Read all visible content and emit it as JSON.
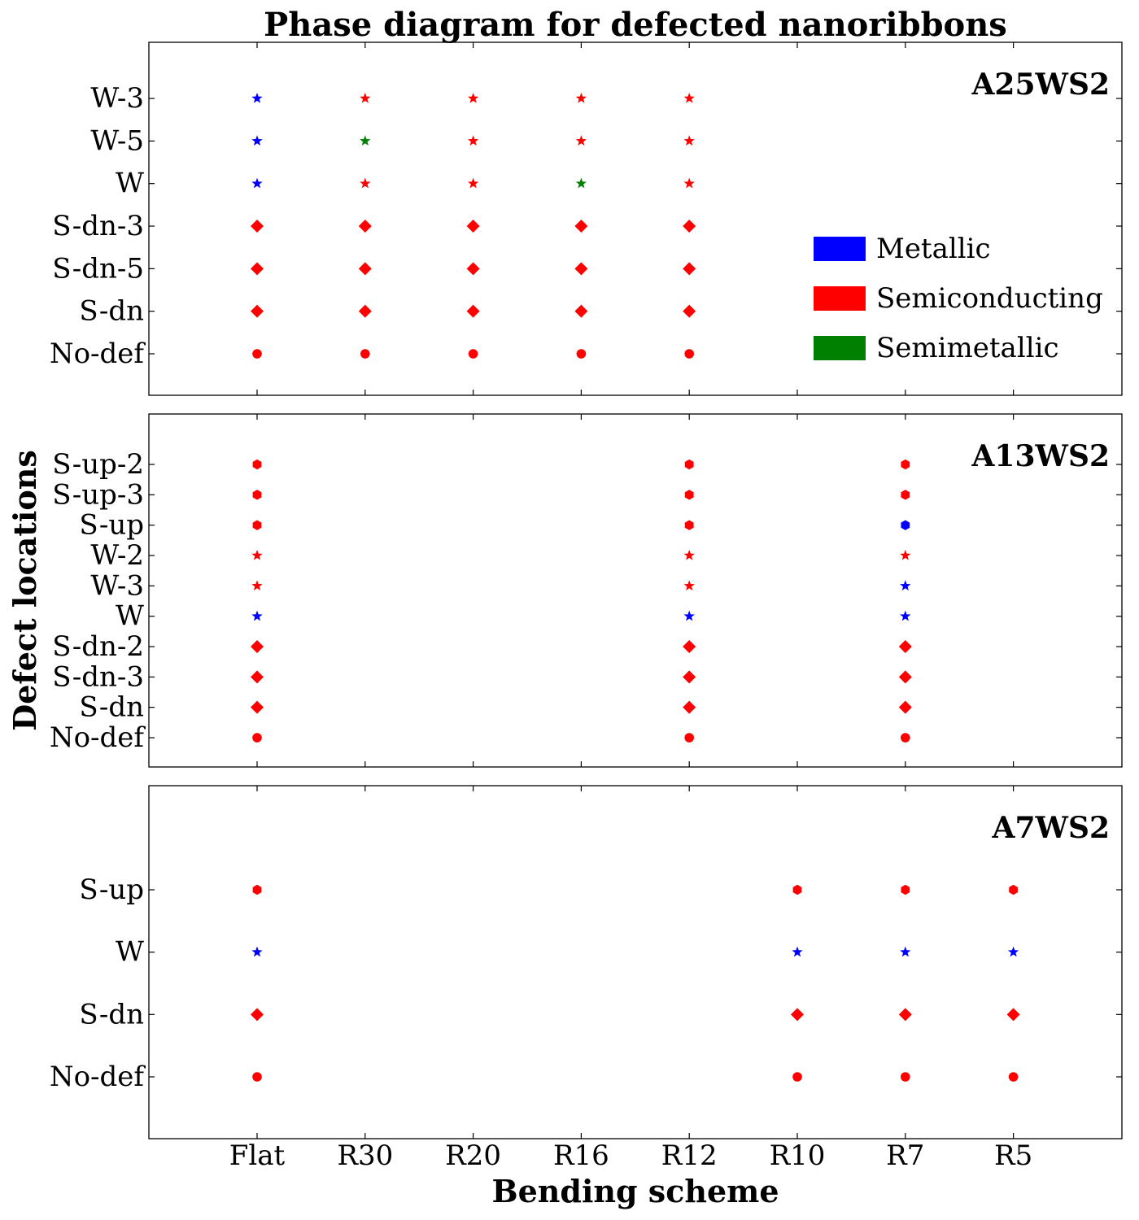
{
  "chart_data": {
    "type": "scatter",
    "title": "Phase diagram for defected nanoribbons",
    "xlabel": "Bending scheme",
    "ylabel": "Defect locations",
    "x_categories": [
      "Flat",
      "R30",
      "R20",
      "R16",
      "R12",
      "R10",
      "R7",
      "R5"
    ],
    "legend": {
      "position": "right of top panel",
      "entries": [
        {
          "label": "Metallic",
          "color": "#0000ff"
        },
        {
          "label": "Semiconducting",
          "color": "#ff0000"
        },
        {
          "label": "Semimetallic",
          "color": "#008000"
        }
      ]
    },
    "marker_key": {
      "No-def": "circle",
      "S-dn": "diamond",
      "S-dn-2": "diamond",
      "S-dn-3": "diamond",
      "S-dn-5": "diamond",
      "W": "star",
      "W-2": "star",
      "W-3": "star",
      "W-5": "star",
      "S-up": "hexagon",
      "S-up-2": "hexagon",
      "S-up-3": "hexagon"
    },
    "panels": [
      {
        "label": "A25WS2",
        "y_categories": [
          "No-def",
          "S-dn",
          "S-dn-5",
          "S-dn-3",
          "W",
          "W-5",
          "W-3"
        ],
        "points": [
          {
            "x": "Flat",
            "y": "No-def",
            "phase": "Semiconducting"
          },
          {
            "x": "R30",
            "y": "No-def",
            "phase": "Semiconducting"
          },
          {
            "x": "R20",
            "y": "No-def",
            "phase": "Semiconducting"
          },
          {
            "x": "R16",
            "y": "No-def",
            "phase": "Semiconducting"
          },
          {
            "x": "R12",
            "y": "No-def",
            "phase": "Semiconducting"
          },
          {
            "x": "Flat",
            "y": "S-dn",
            "phase": "Semiconducting"
          },
          {
            "x": "R30",
            "y": "S-dn",
            "phase": "Semiconducting"
          },
          {
            "x": "R20",
            "y": "S-dn",
            "phase": "Semiconducting"
          },
          {
            "x": "R16",
            "y": "S-dn",
            "phase": "Semiconducting"
          },
          {
            "x": "R12",
            "y": "S-dn",
            "phase": "Semiconducting"
          },
          {
            "x": "Flat",
            "y": "S-dn-5",
            "phase": "Semiconducting"
          },
          {
            "x": "R30",
            "y": "S-dn-5",
            "phase": "Semiconducting"
          },
          {
            "x": "R20",
            "y": "S-dn-5",
            "phase": "Semiconducting"
          },
          {
            "x": "R16",
            "y": "S-dn-5",
            "phase": "Semiconducting"
          },
          {
            "x": "R12",
            "y": "S-dn-5",
            "phase": "Semiconducting"
          },
          {
            "x": "Flat",
            "y": "S-dn-3",
            "phase": "Semiconducting"
          },
          {
            "x": "R30",
            "y": "S-dn-3",
            "phase": "Semiconducting"
          },
          {
            "x": "R20",
            "y": "S-dn-3",
            "phase": "Semiconducting"
          },
          {
            "x": "R16",
            "y": "S-dn-3",
            "phase": "Semiconducting"
          },
          {
            "x": "R12",
            "y": "S-dn-3",
            "phase": "Semiconducting"
          },
          {
            "x": "Flat",
            "y": "W",
            "phase": "Metallic"
          },
          {
            "x": "R30",
            "y": "W",
            "phase": "Semiconducting"
          },
          {
            "x": "R20",
            "y": "W",
            "phase": "Semiconducting"
          },
          {
            "x": "R16",
            "y": "W",
            "phase": "Semimetallic"
          },
          {
            "x": "R12",
            "y": "W",
            "phase": "Semiconducting"
          },
          {
            "x": "Flat",
            "y": "W-5",
            "phase": "Metallic"
          },
          {
            "x": "R30",
            "y": "W-5",
            "phase": "Semimetallic"
          },
          {
            "x": "R20",
            "y": "W-5",
            "phase": "Semiconducting"
          },
          {
            "x": "R16",
            "y": "W-5",
            "phase": "Semiconducting"
          },
          {
            "x": "R12",
            "y": "W-5",
            "phase": "Semiconducting"
          },
          {
            "x": "Flat",
            "y": "W-3",
            "phase": "Metallic"
          },
          {
            "x": "R30",
            "y": "W-3",
            "phase": "Semiconducting"
          },
          {
            "x": "R20",
            "y": "W-3",
            "phase": "Semiconducting"
          },
          {
            "x": "R16",
            "y": "W-3",
            "phase": "Semiconducting"
          },
          {
            "x": "R12",
            "y": "W-3",
            "phase": "Semiconducting"
          }
        ]
      },
      {
        "label": "A13WS2",
        "y_categories": [
          "No-def",
          "S-dn",
          "S-dn-3",
          "S-dn-2",
          "W",
          "W-3",
          "W-2",
          "S-up",
          "S-up-3",
          "S-up-2"
        ],
        "points": [
          {
            "x": "Flat",
            "y": "No-def",
            "phase": "Semiconducting"
          },
          {
            "x": "R12",
            "y": "No-def",
            "phase": "Semiconducting"
          },
          {
            "x": "R7",
            "y": "No-def",
            "phase": "Semiconducting"
          },
          {
            "x": "Flat",
            "y": "S-dn",
            "phase": "Semiconducting"
          },
          {
            "x": "R12",
            "y": "S-dn",
            "phase": "Semiconducting"
          },
          {
            "x": "R7",
            "y": "S-dn",
            "phase": "Semiconducting"
          },
          {
            "x": "Flat",
            "y": "S-dn-3",
            "phase": "Semiconducting"
          },
          {
            "x": "R12",
            "y": "S-dn-3",
            "phase": "Semiconducting"
          },
          {
            "x": "R7",
            "y": "S-dn-3",
            "phase": "Semiconducting"
          },
          {
            "x": "Flat",
            "y": "S-dn-2",
            "phase": "Semiconducting"
          },
          {
            "x": "R12",
            "y": "S-dn-2",
            "phase": "Semiconducting"
          },
          {
            "x": "R7",
            "y": "S-dn-2",
            "phase": "Semiconducting"
          },
          {
            "x": "Flat",
            "y": "W",
            "phase": "Metallic"
          },
          {
            "x": "R12",
            "y": "W",
            "phase": "Metallic"
          },
          {
            "x": "R7",
            "y": "W",
            "phase": "Metallic"
          },
          {
            "x": "Flat",
            "y": "W-3",
            "phase": "Semiconducting"
          },
          {
            "x": "R12",
            "y": "W-3",
            "phase": "Semiconducting"
          },
          {
            "x": "R7",
            "y": "W-3",
            "phase": "Metallic"
          },
          {
            "x": "Flat",
            "y": "W-2",
            "phase": "Semiconducting"
          },
          {
            "x": "R12",
            "y": "W-2",
            "phase": "Semiconducting"
          },
          {
            "x": "R7",
            "y": "W-2",
            "phase": "Semiconducting"
          },
          {
            "x": "Flat",
            "y": "S-up",
            "phase": "Semiconducting"
          },
          {
            "x": "R12",
            "y": "S-up",
            "phase": "Semiconducting"
          },
          {
            "x": "R7",
            "y": "S-up",
            "phase": "Metallic"
          },
          {
            "x": "Flat",
            "y": "S-up-3",
            "phase": "Semiconducting"
          },
          {
            "x": "R12",
            "y": "S-up-3",
            "phase": "Semiconducting"
          },
          {
            "x": "R7",
            "y": "S-up-3",
            "phase": "Semiconducting"
          },
          {
            "x": "Flat",
            "y": "S-up-2",
            "phase": "Semiconducting"
          },
          {
            "x": "R12",
            "y": "S-up-2",
            "phase": "Semiconducting"
          },
          {
            "x": "R7",
            "y": "S-up-2",
            "phase": "Semiconducting"
          }
        ]
      },
      {
        "label": "A7WS2",
        "y_categories": [
          "No-def",
          "S-dn",
          "W",
          "S-up"
        ],
        "points": [
          {
            "x": "Flat",
            "y": "No-def",
            "phase": "Semiconducting"
          },
          {
            "x": "R10",
            "y": "No-def",
            "phase": "Semiconducting"
          },
          {
            "x": "R7",
            "y": "No-def",
            "phase": "Semiconducting"
          },
          {
            "x": "R5",
            "y": "No-def",
            "phase": "Semiconducting"
          },
          {
            "x": "Flat",
            "y": "S-dn",
            "phase": "Semiconducting"
          },
          {
            "x": "R10",
            "y": "S-dn",
            "phase": "Semiconducting"
          },
          {
            "x": "R7",
            "y": "S-dn",
            "phase": "Semiconducting"
          },
          {
            "x": "R5",
            "y": "S-dn",
            "phase": "Semiconducting"
          },
          {
            "x": "Flat",
            "y": "W",
            "phase": "Metallic"
          },
          {
            "x": "R10",
            "y": "W",
            "phase": "Metallic"
          },
          {
            "x": "R7",
            "y": "W",
            "phase": "Metallic"
          },
          {
            "x": "R5",
            "y": "W",
            "phase": "Metallic"
          },
          {
            "x": "Flat",
            "y": "S-up",
            "phase": "Semiconducting"
          },
          {
            "x": "R10",
            "y": "S-up",
            "phase": "Semiconducting"
          },
          {
            "x": "R7",
            "y": "S-up",
            "phase": "Semiconducting"
          },
          {
            "x": "R5",
            "y": "S-up",
            "phase": "Semiconducting"
          }
        ]
      }
    ]
  }
}
